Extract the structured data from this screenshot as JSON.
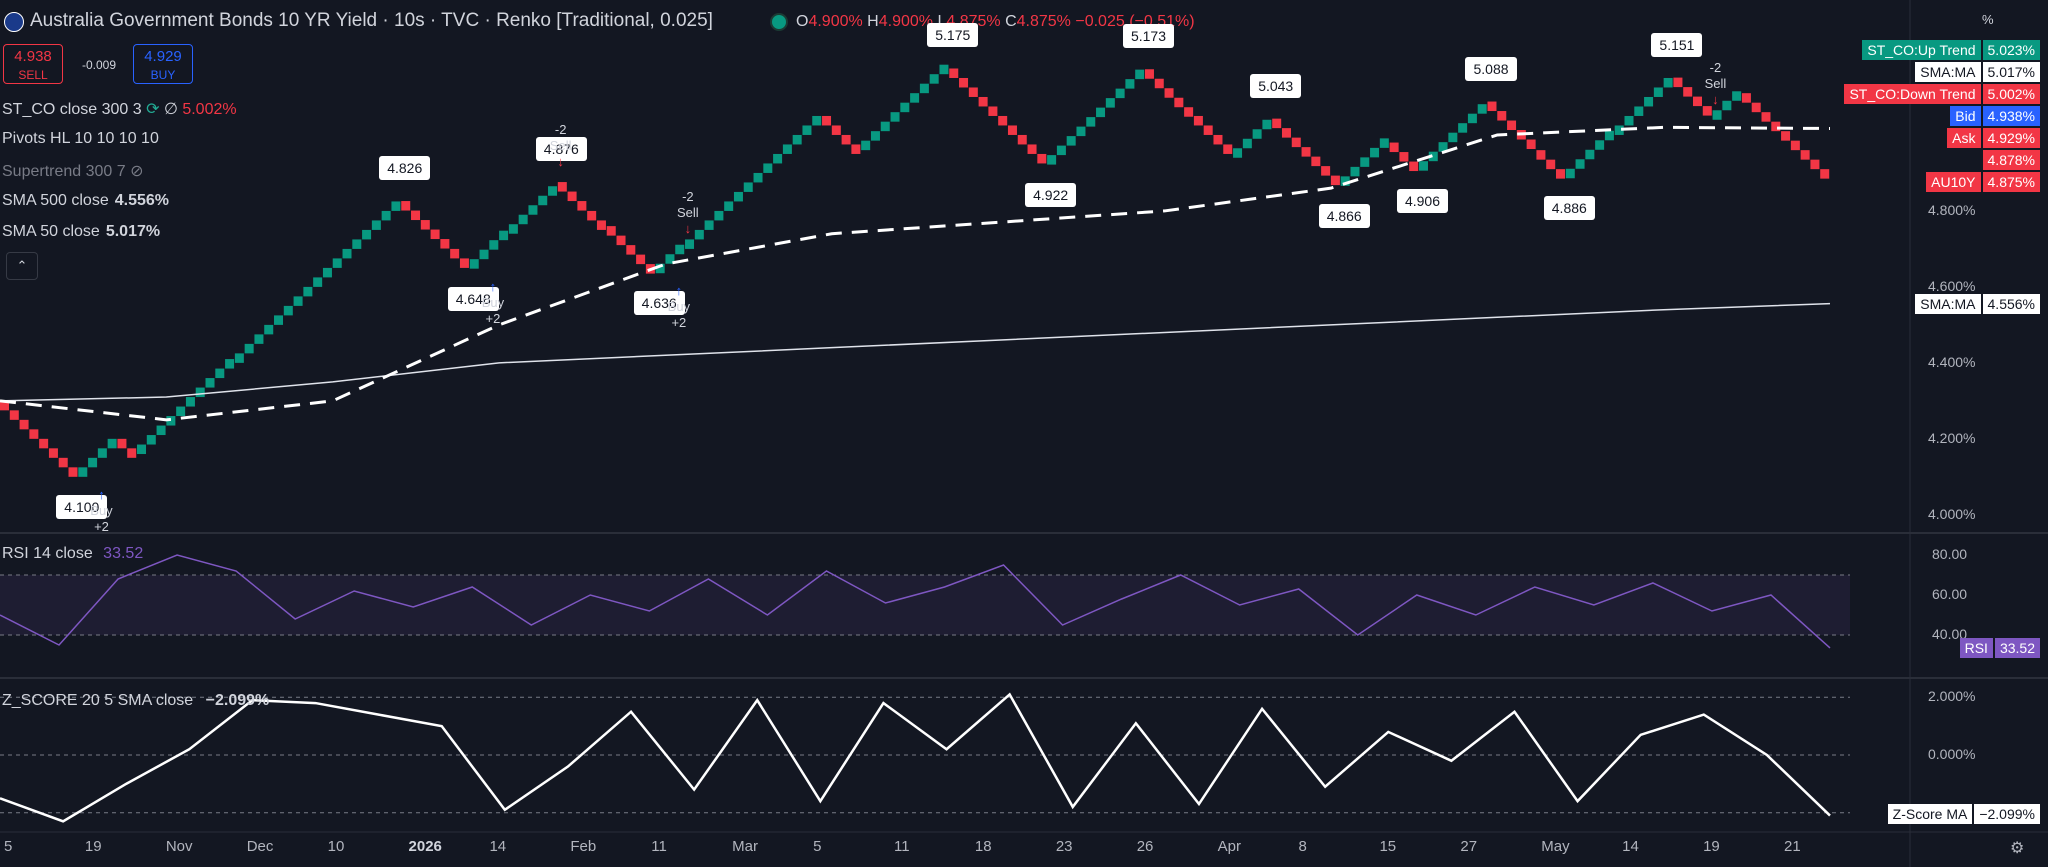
{
  "header": {
    "title": "Australia Government Bonds 10 YR Yield · 10s · TVC · Renko [Traditional, 0.025]",
    "ohlc": [
      {
        "key": "O",
        "value": "4.900%"
      },
      {
        "key": "H",
        "value": "4.900%"
      },
      {
        "key": "L",
        "value": "4.875%"
      },
      {
        "key": "C",
        "value": "4.875%"
      }
    ],
    "change": "−0.025 (−0.51%)",
    "percent_button": "%"
  },
  "quote": {
    "sell_price": "4.938",
    "sell_label": "SELL",
    "spread": "-0.009",
    "buy_price": "4.929",
    "buy_label": "BUY"
  },
  "indicators": {
    "st_co": {
      "name": "ST_CO close 300 3",
      "symbol": "∅",
      "value": "5.002%"
    },
    "pivots": {
      "name": "Pivots HL 10 10 10 10"
    },
    "supertrend": {
      "name": "Supertrend 300 7"
    },
    "sma500": {
      "name": "SMA 500 close",
      "value": "4.556%"
    },
    "sma50": {
      "name": "SMA 50 close",
      "value": "5.017%"
    },
    "rsi": {
      "name": "RSI 14 close",
      "value": "33.52"
    },
    "zscore": {
      "name": "Z_SCORE 20 5 SMA close",
      "value": "−2.099%"
    }
  },
  "price_axis": {
    "ticks": [
      "4.800%",
      "4.600%",
      "4.400%",
      "4.200%",
      "4.000%"
    ],
    "tags": [
      {
        "name": "ST_CO:Up Trend",
        "value": "5.023%",
        "color": "#089981"
      },
      {
        "name": "SMA:MA",
        "value": "5.017%",
        "color": "#ffffff"
      },
      {
        "name": "ST_CO:Down Trend",
        "value": "5.002%",
        "color": "#f23645"
      },
      {
        "name": "Bid",
        "value": "4.938%",
        "color": "#2962ff"
      },
      {
        "name": "Ask",
        "value": "4.929%",
        "color": "#f23645"
      },
      {
        "name": "",
        "value": "4.878%",
        "color": "#f23645"
      },
      {
        "name": "AU10Y",
        "value": "4.875%",
        "color": "#f23645"
      },
      {
        "name": "SMA:MA",
        "value": "4.556%",
        "color": "#ffffff"
      }
    ]
  },
  "rsi_axis": {
    "ticks": [
      "80.00",
      "60.00",
      "40.00"
    ],
    "tag_name": "RSI",
    "tag_value": "33.52",
    "color": "#7e57c2"
  },
  "z_axis": {
    "ticks": [
      "2.000%",
      "0.000%"
    ],
    "tag_name": "Z-Score MA",
    "tag_value": "−2.099%"
  },
  "x_axis": {
    "labels": [
      "5",
      "19",
      "Nov",
      "Dec",
      "10",
      "2026",
      "14",
      "Feb",
      "11",
      "Mar",
      "5",
      "11",
      "18",
      "23",
      "26",
      "Apr",
      "8",
      "15",
      "27",
      "May",
      "14",
      "19",
      "21"
    ],
    "bold_labels": [
      "2026"
    ]
  },
  "pivot_labels": {
    "highs": [
      "4.826",
      "4.876",
      "5.175",
      "5.173",
      "5.043",
      "5.088",
      "5.151"
    ],
    "lows": [
      "4.100",
      "4.648",
      "4.636",
      "4.922",
      "4.866",
      "4.906",
      "4.886"
    ]
  },
  "signals": {
    "sell_text": "Sell",
    "sell_qty": "-2",
    "buy_text": "Buy",
    "buy_qty": "+2"
  },
  "chart_data": {
    "type": "renko",
    "title": "Australia Government Bonds 10 YR Yield · 10s · TVC · Renko [Traditional, 0.025]",
    "box_size": 0.025,
    "ylim": [
      3.96,
      5.25
    ],
    "path": [
      4.3,
      4.1,
      4.2,
      4.16,
      4.4,
      4.6,
      4.826,
      4.7,
      4.648,
      4.74,
      4.876,
      4.8,
      4.76,
      4.636,
      4.7,
      4.9,
      5.05,
      4.96,
      5.175,
      5.0,
      4.922,
      5.173,
      5.05,
      4.94,
      5.043,
      4.866,
      4.98,
      4.906,
      5.088,
      4.96,
      4.886,
      5.0,
      5.151,
      5.04,
      5.11,
      4.875
    ],
    "sma500": [
      4.3,
      4.31,
      4.35,
      4.4,
      4.42,
      4.44,
      4.46,
      4.48,
      4.5,
      4.52,
      4.54,
      4.556
    ],
    "sma50": [
      4.3,
      4.25,
      4.3,
      4.5,
      4.66,
      4.74,
      4.77,
      4.8,
      4.86,
      5.0,
      5.02,
      5.017
    ],
    "rsi": {
      "ylim": [
        20,
        90
      ],
      "band": [
        40,
        70
      ],
      "values": [
        50,
        35,
        68,
        80,
        72,
        48,
        62,
        54,
        64,
        45,
        60,
        52,
        68,
        50,
        72,
        56,
        64,
        75,
        45,
        58,
        70,
        55,
        63,
        40,
        60,
        50,
        64,
        55,
        66,
        52,
        60,
        33.52
      ]
    },
    "zscore": {
      "ylim": [
        -2.6,
        2.6
      ],
      "values": [
        -1.5,
        -2.3,
        -1.0,
        0.2,
        1.9,
        1.8,
        1.4,
        1.0,
        -1.9,
        -0.4,
        1.5,
        -1.2,
        1.9,
        -1.6,
        1.8,
        0.2,
        2.1,
        -1.8,
        1.1,
        -1.7,
        1.6,
        -1.1,
        0.8,
        -0.2,
        1.5,
        -1.6,
        0.7,
        1.4,
        0.0,
        -2.099
      ]
    }
  }
}
